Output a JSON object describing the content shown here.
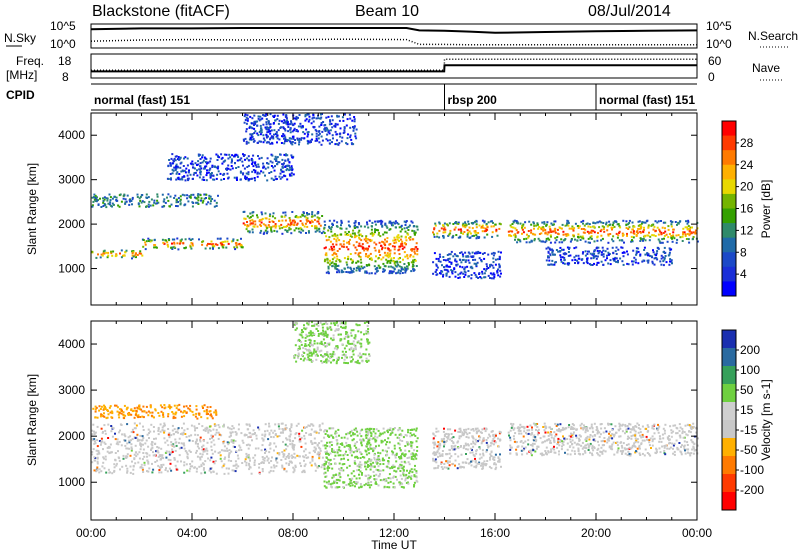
{
  "header": {
    "station": "Blackstone (fitACF)",
    "beam": "Beam 10",
    "date": "08/Jul/2014"
  },
  "chart_data": [
    {
      "type": "line",
      "panel": "nsky-nsearch",
      "left_label": "N.Sky",
      "right_label": "N.Search",
      "left_ticks": [
        "10^5",
        "10^0"
      ],
      "right_ticks": [
        "10^5",
        "10^0"
      ],
      "x": [
        0,
        2,
        4,
        6,
        8,
        10,
        12.5,
        13,
        14,
        15,
        16,
        18,
        20,
        22,
        24
      ],
      "series": [
        {
          "name": "N.Sky",
          "style": "solid",
          "values": [
            4.2,
            4.4,
            4.4,
            4.5,
            4.5,
            4.5,
            4.5,
            3.9,
            3.8,
            3.6,
            3.3,
            3.5,
            3.7,
            3.8,
            3.9
          ]
        },
        {
          "name": "N.Search",
          "style": "dotted",
          "values": [
            1.2,
            1.5,
            1.6,
            1.5,
            1.6,
            1.7,
            1.6,
            0.4,
            0.4,
            0.3,
            0.3,
            0.3,
            0.3,
            0.3,
            0.3
          ]
        }
      ]
    },
    {
      "type": "line",
      "panel": "freq-nave",
      "left_label_top": "Freq.",
      "left_label_bottom": "[MHz]",
      "right_label": "Nave",
      "left_ticks": [
        "18",
        "8"
      ],
      "right_ticks": [
        "60",
        "0"
      ],
      "x": [
        0,
        13.99,
        14,
        24
      ],
      "series": [
        {
          "name": "Freq.",
          "style": "solid",
          "values": [
            10.3,
            10.3,
            13.4,
            13.4
          ]
        },
        {
          "name": "Nave",
          "style": "dotted",
          "values": [
            17,
            17,
            50,
            50
          ]
        }
      ]
    },
    {
      "type": "table",
      "panel": "cpid",
      "label": "CPID",
      "segments": [
        {
          "start": 0,
          "end": 14,
          "text": "normal (fast) 151"
        },
        {
          "start": 14,
          "end": 20,
          "text": "rbsp 200"
        },
        {
          "start": 20,
          "end": 24,
          "text": "normal (fast) 151"
        }
      ]
    },
    {
      "type": "heatmap",
      "panel": "power",
      "ylabel": "Slant Range [km]",
      "xlim": [
        0,
        24
      ],
      "ylim": [
        180,
        4500
      ],
      "y_ticks": [
        1000,
        2000,
        3000,
        4000
      ],
      "colorbar_label": "Power [dB]",
      "colorbar_ticks": [
        "28",
        "24",
        "20",
        "16",
        "12",
        "8",
        "4"
      ],
      "colorbar_colors": [
        "#ff0000",
        "#ff3a00",
        "#ff7a00",
        "#ffb000",
        "#e8d800",
        "#74b400",
        "#34a000",
        "#2f8a6a",
        "#1f6aa8",
        "#1b49c8",
        "#1a2fd8",
        "#0000ff"
      ],
      "bands": [
        {
          "t0": 0,
          "t1": 2,
          "r0": 1250,
          "r1": 1450,
          "level": "high"
        },
        {
          "t0": 2,
          "t1": 6,
          "r0": 1450,
          "r1": 1700,
          "level": "high"
        },
        {
          "t0": 6,
          "t1": 9.2,
          "r0": 1800,
          "r1": 2300,
          "level": "high"
        },
        {
          "t0": 9.2,
          "t1": 12.9,
          "r0": 900,
          "r1": 2100,
          "level": "high"
        },
        {
          "t0": 13.5,
          "t1": 16.2,
          "r0": 1700,
          "r1": 2100,
          "level": "high"
        },
        {
          "t0": 16.5,
          "t1": 24,
          "r0": 1600,
          "r1": 2100,
          "level": "high"
        },
        {
          "t0": 0,
          "t1": 5,
          "r0": 2400,
          "r1": 2700,
          "level": "mid"
        },
        {
          "t0": 3,
          "t1": 8,
          "r0": 3000,
          "r1": 3600,
          "level": "low"
        },
        {
          "t0": 6,
          "t1": 10.5,
          "r0": 3800,
          "r1": 4500,
          "level": "low"
        },
        {
          "t0": 13.5,
          "t1": 16.2,
          "r0": 800,
          "r1": 1400,
          "level": "low"
        },
        {
          "t0": 18,
          "t1": 23,
          "r0": 1100,
          "r1": 1500,
          "level": "low"
        }
      ]
    },
    {
      "type": "heatmap",
      "panel": "velocity",
      "ylabel": "Slant Range [km]",
      "xlabel": "Time UT",
      "xlim": [
        0,
        24
      ],
      "ylim": [
        180,
        4500
      ],
      "x_ticks": [
        "00:00",
        "04:00",
        "08:00",
        "12:00",
        "16:00",
        "20:00",
        "00:00"
      ],
      "y_ticks": [
        1000,
        2000,
        3000,
        4000
      ],
      "colorbar_label": "Velocity [m s-1]",
      "colorbar_ticks": [
        "200",
        "100",
        "50",
        "15",
        "-15",
        "-50",
        "-100",
        "-200"
      ],
      "colorbar_colors": [
        "#1a2fb0",
        "#2a6aa0",
        "#36a05a",
        "#6fd040",
        "#cfcfcf",
        "#c8c8c8",
        "#ffb000",
        "#ff7a00",
        "#ff3a00",
        "#ff0000"
      ],
      "bands": [
        {
          "t0": 0,
          "t1": 9.2,
          "r0": 1200,
          "r1": 2300,
          "level": "ground"
        },
        {
          "t0": 9.2,
          "t1": 12.9,
          "r0": 900,
          "r1": 2200,
          "level": "positive"
        },
        {
          "t0": 13.5,
          "t1": 16.2,
          "r0": 1300,
          "r1": 2200,
          "level": "ground"
        },
        {
          "t0": 16.5,
          "t1": 24,
          "r0": 1600,
          "r1": 2300,
          "level": "ground"
        },
        {
          "t0": 0,
          "t1": 5,
          "r0": 2400,
          "r1": 2700,
          "level": "negative"
        },
        {
          "t0": 8,
          "t1": 11,
          "r0": 3600,
          "r1": 4500,
          "level": "positive"
        }
      ]
    }
  ]
}
